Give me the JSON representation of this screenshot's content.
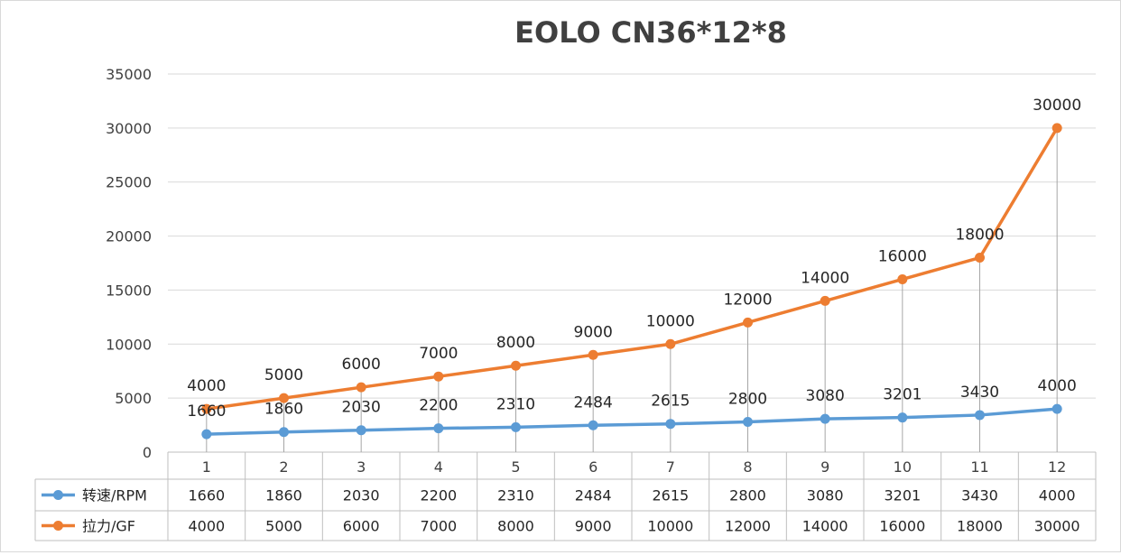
{
  "chart_data": {
    "type": "line",
    "title": "EOLO CN36*12*8",
    "categories": [
      "1",
      "2",
      "3",
      "4",
      "5",
      "6",
      "7",
      "8",
      "9",
      "10",
      "11",
      "12"
    ],
    "y_ticks": [
      "0",
      "5000",
      "10000",
      "15000",
      "20000",
      "25000",
      "30000",
      "35000"
    ],
    "ylim": [
      0,
      35000
    ],
    "grid": true,
    "legend": "data-table",
    "series": [
      {
        "name": "转速/RPM",
        "color": "#5b9bd5",
        "values": [
          1660,
          1860,
          2030,
          2200,
          2310,
          2484,
          2615,
          2800,
          3080,
          3201,
          3430,
          4000
        ],
        "labels": [
          "1660",
          "1860",
          "2030",
          "2200",
          "2310",
          "2484",
          "2615",
          "2800",
          "3080",
          "3201",
          "3430",
          "4000"
        ]
      },
      {
        "name": "拉力/GF",
        "color": "#ed7d31",
        "values": [
          4000,
          5000,
          6000,
          7000,
          8000,
          9000,
          10000,
          12000,
          14000,
          16000,
          18000,
          30000
        ],
        "labels": [
          "4000",
          "5000",
          "6000",
          "7000",
          "8000",
          "9000",
          "10000",
          "12000",
          "14000",
          "16000",
          "18000",
          "30000"
        ]
      }
    ]
  }
}
